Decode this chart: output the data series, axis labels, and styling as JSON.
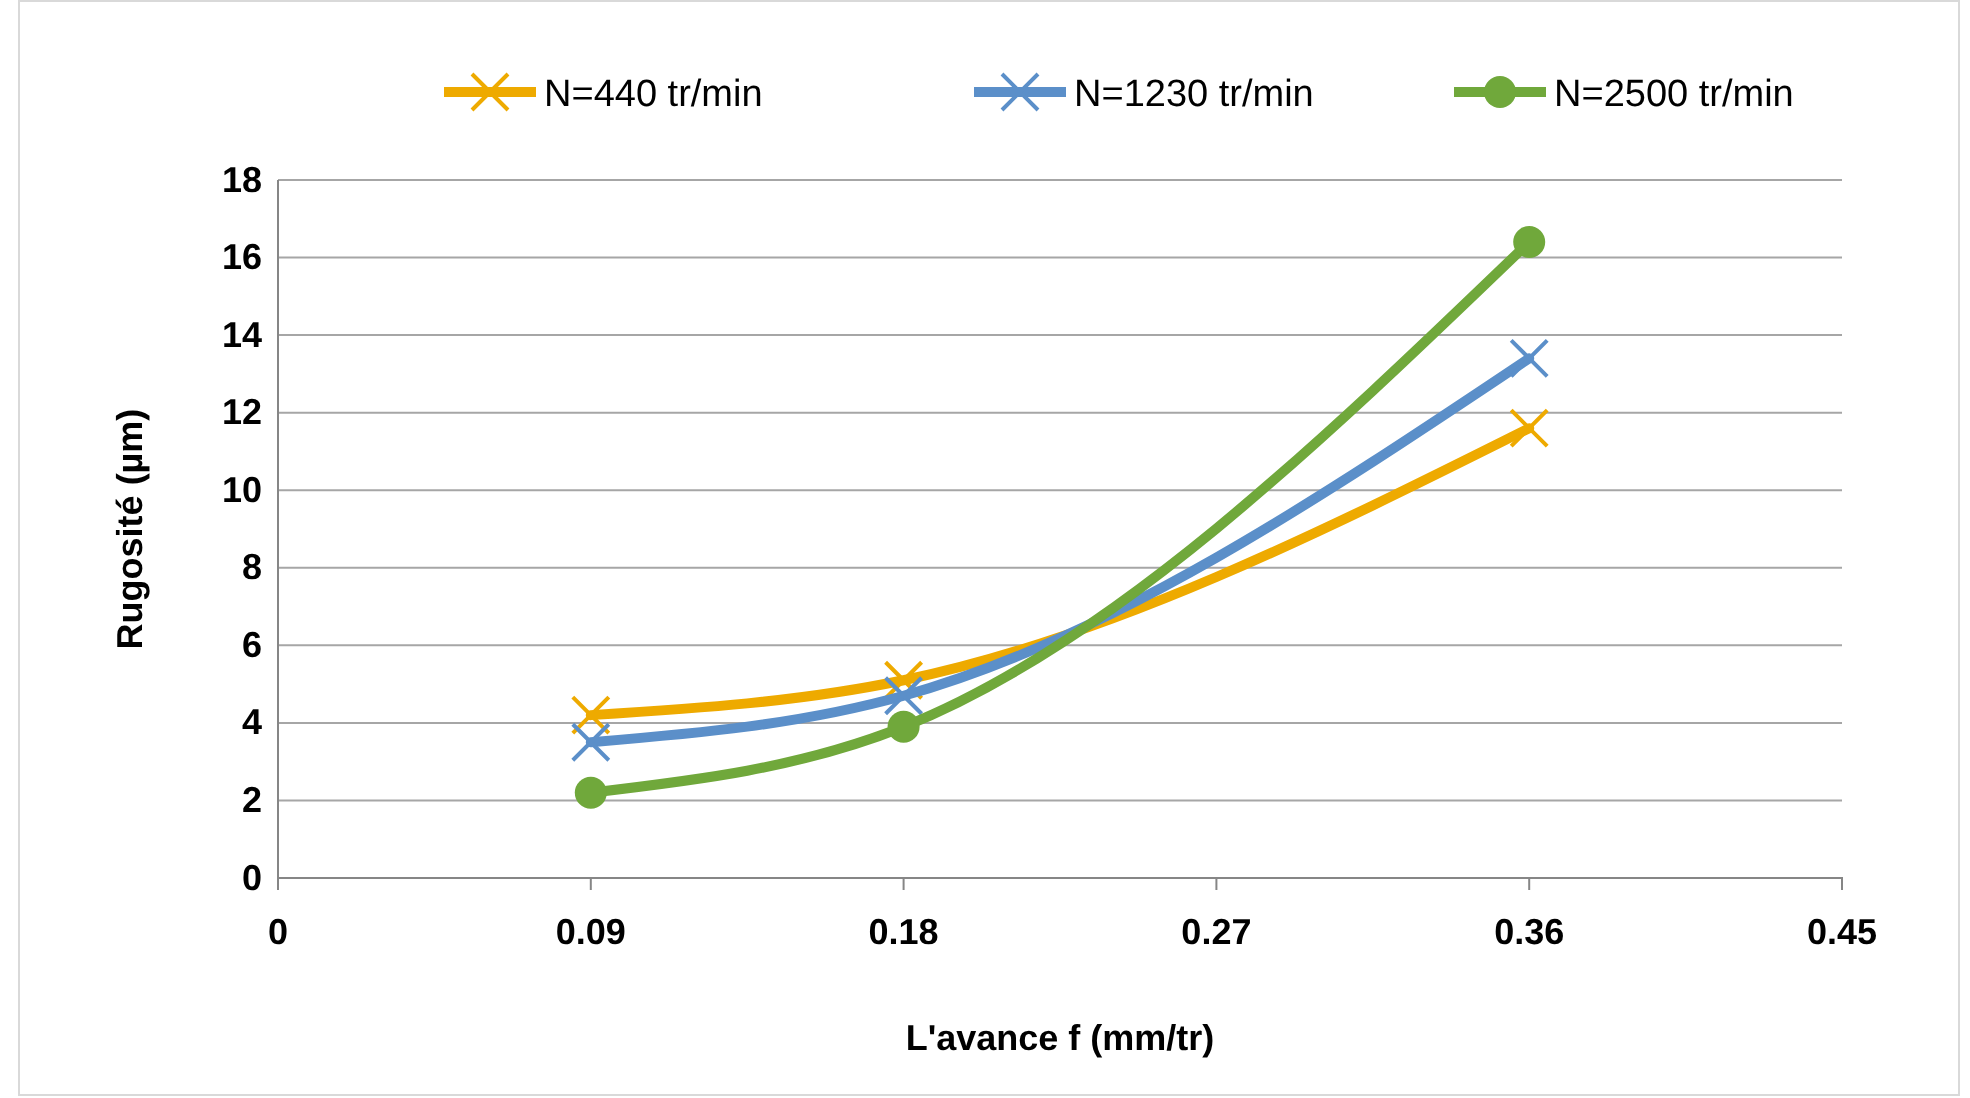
{
  "chart_data": {
    "type": "line",
    "xlabel": "L'avance f (mm/tr)",
    "ylabel": "Rugosité (µm)",
    "x": [
      0.09,
      0.18,
      0.36
    ],
    "series": [
      {
        "name": "N=440 tr/min",
        "color": "#eeaa00",
        "marker": "cross",
        "values": [
          4.2,
          5.1,
          11.6
        ]
      },
      {
        "name": "N=1230 tr/min",
        "color": "#5b8fc9",
        "marker": "cross",
        "values": [
          3.5,
          4.7,
          13.4
        ]
      },
      {
        "name": "N=2500 tr/min",
        "color": "#70a83b",
        "marker": "circle",
        "values": [
          2.2,
          3.9,
          16.4
        ]
      }
    ],
    "xlim": [
      0,
      0.45
    ],
    "xticks": [
      0,
      0.09,
      0.18,
      0.27,
      0.36,
      0.45
    ],
    "ylim": [
      0,
      18
    ],
    "yticks": [
      0,
      2,
      4,
      6,
      8,
      10,
      12,
      14,
      16,
      18
    ],
    "grid": "y",
    "legend": "top",
    "line_style": "solid"
  }
}
